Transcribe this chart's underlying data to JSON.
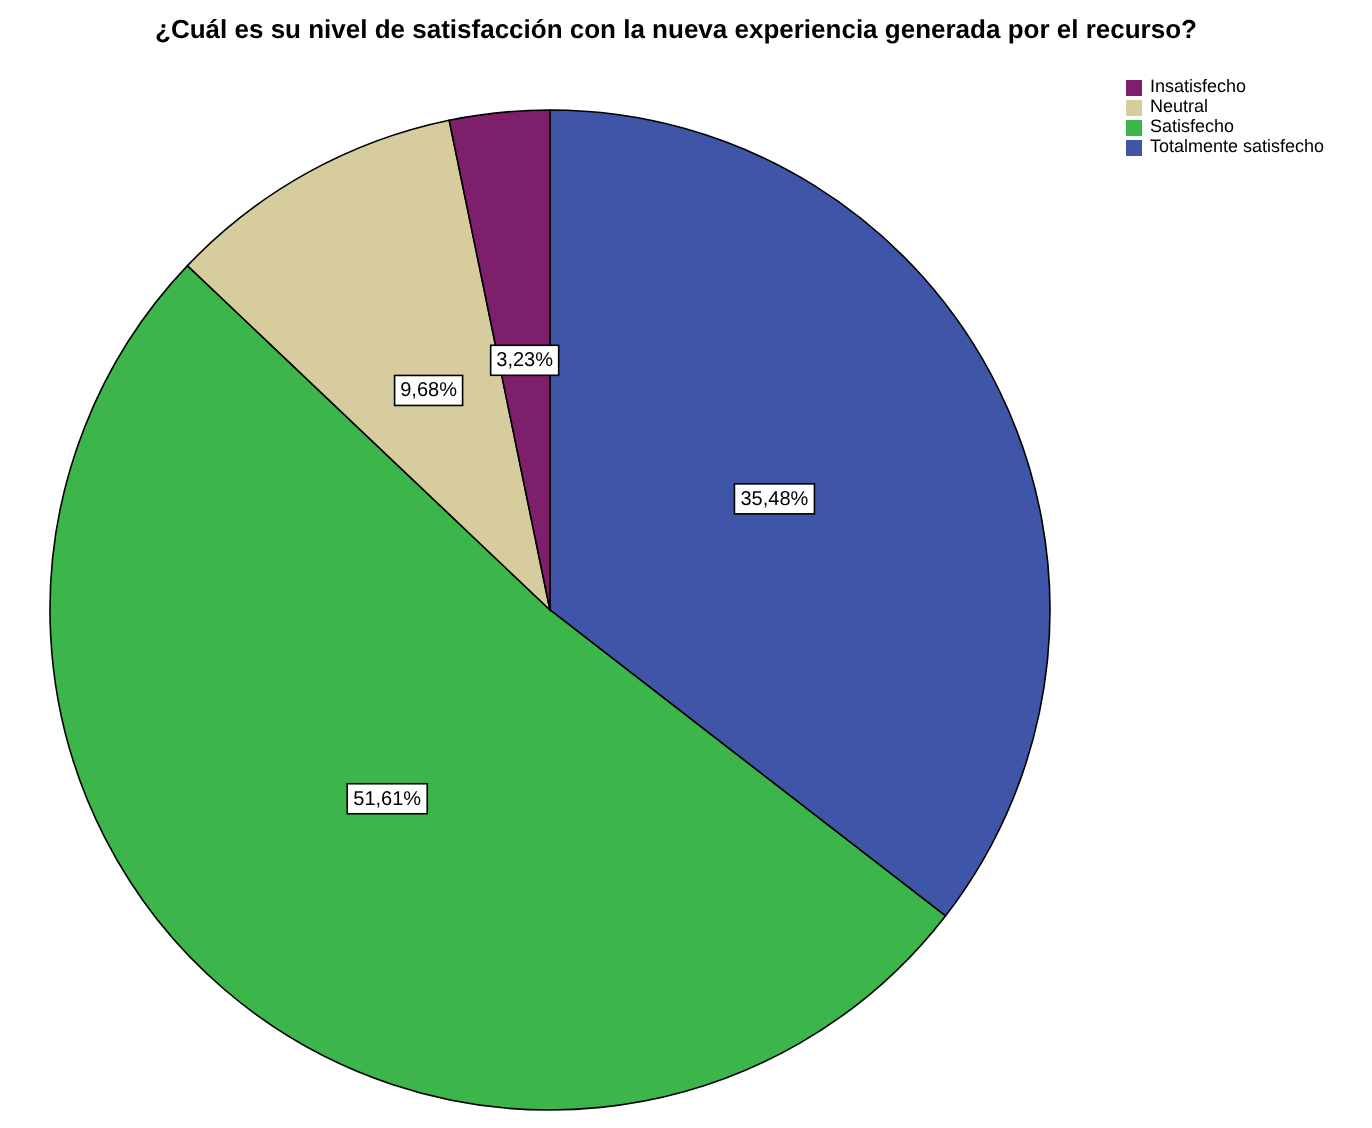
{
  "chart_data": {
    "type": "pie",
    "title": "¿Cuál es su nivel de satisfacción con la nueva experiencia generada por el recurso?",
    "categories": [
      "Totalmente satisfecho",
      "Satisfecho",
      "Neutral",
      "Insatisfecho"
    ],
    "values": [
      35.48,
      51.61,
      9.68,
      3.23
    ],
    "colors": [
      "#3f56a8",
      "#3cb54a",
      "#d6cc9e",
      "#7d1f6a"
    ],
    "value_labels": [
      "35,48%",
      "51,61%",
      "9,68%",
      "3,23%"
    ],
    "legend": "top right"
  }
}
